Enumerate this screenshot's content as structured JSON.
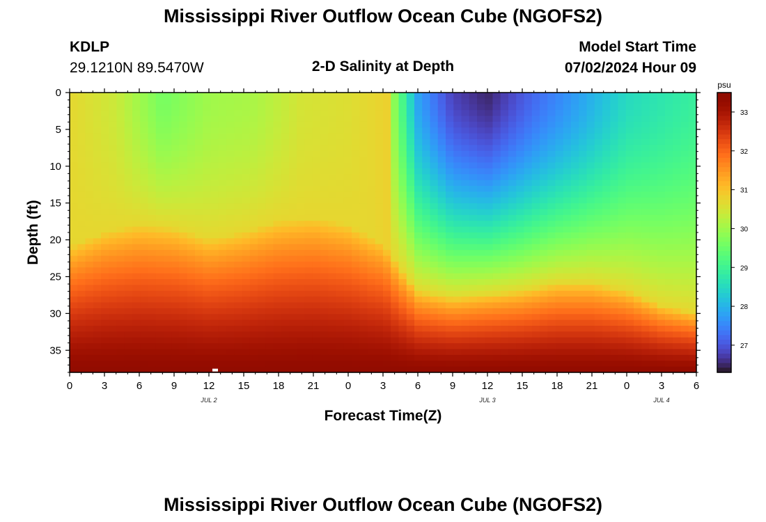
{
  "title": "Mississippi River Outflow Ocean Cube (NGOFS2)",
  "title_repeat": "Mississippi River Outflow Ocean Cube (NGOFS2)",
  "station": {
    "id": "KDLP",
    "coords": "29.1210N  89.5470W"
  },
  "subtitle": "2-D Salinity at Depth",
  "model_start": {
    "label": "Model Start Time",
    "value": "07/02/2024 Hour 09"
  },
  "chart_data": {
    "type": "heatmap",
    "title": "2-D Salinity at Depth",
    "xlabel": "Forecast Time(Z)",
    "ylabel": "Depth (ft)",
    "x_ticks": [
      "0",
      "3",
      "6",
      "9",
      "12",
      "15",
      "18",
      "21",
      "0",
      "3",
      "6",
      "9",
      "12",
      "15",
      "18",
      "21",
      "0",
      "3",
      "6"
    ],
    "x_range_hours": [
      0,
      54
    ],
    "y_ticks": [
      "0",
      "5",
      "10",
      "15",
      "20",
      "25",
      "30",
      "35"
    ],
    "ylim": [
      0,
      38
    ],
    "y_inverted": true,
    "date_labels": [
      {
        "text": "JUL 2",
        "hour": 12
      },
      {
        "text": "JUL 3",
        "hour": 36
      },
      {
        "text": "JUL 4",
        "hour": 51
      }
    ],
    "colorbar": {
      "unit": "psu",
      "ticks": [
        "27",
        "28",
        "29",
        "30",
        "31",
        "32",
        "33"
      ],
      "range": [
        26.3,
        33.5
      ],
      "colormap": "turbo"
    },
    "surface_profile_x": [
      0,
      4,
      8,
      12,
      16,
      20,
      24,
      27.5,
      28,
      30,
      33,
      36,
      40,
      44,
      48,
      54
    ],
    "surface_profile_salinity": [
      30.7,
      30.4,
      29.6,
      30.0,
      30.1,
      30.5,
      30.6,
      30.8,
      29.8,
      27.8,
      26.8,
      26.5,
      27.2,
      27.8,
      28.5,
      28.9
    ],
    "bottom_salinity": 33.4,
    "halocline_depth_x": [
      0,
      3,
      6,
      9,
      12,
      15,
      18,
      21,
      24,
      27,
      28.5,
      30,
      33,
      36,
      39,
      42,
      45,
      48,
      51,
      54
    ],
    "halocline_depth_ft": [
      21,
      19,
      18,
      18.5,
      20,
      19,
      17.5,
      17,
      18,
      20.5,
      24,
      27,
      28,
      27.5,
      27,
      26,
      26,
      27,
      29,
      30
    ]
  }
}
